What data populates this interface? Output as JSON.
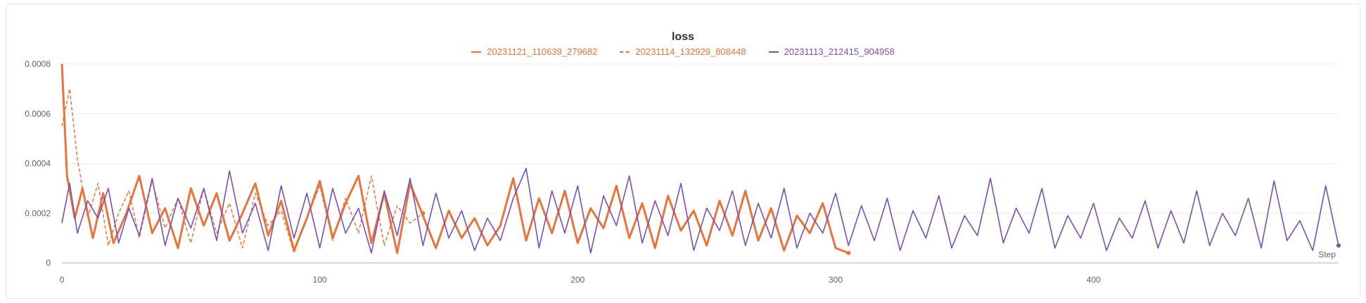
{
  "chart_data": {
    "type": "line",
    "title": "loss",
    "xlabel": "Step",
    "ylabel": "",
    "xlim": [
      0,
      495
    ],
    "ylim": [
      0,
      0.0008
    ],
    "x_ticks": [
      0,
      100,
      200,
      300,
      400
    ],
    "y_ticks": [
      0,
      0.0002,
      0.0004,
      0.0006,
      0.0008
    ],
    "x_tick_labels": [
      "0",
      "100",
      "200",
      "300",
      "400"
    ],
    "y_tick_labels": [
      "0",
      "0.0002",
      "0.0004",
      "0.0006",
      "0.0008"
    ],
    "grid": true,
    "legend_position": "top-center",
    "series": [
      {
        "name": "20231121_110639_279682",
        "color": "#e8743b",
        "style": "solid-thick",
        "x": [
          0,
          2,
          5,
          8,
          12,
          16,
          20,
          25,
          30,
          35,
          40,
          45,
          50,
          55,
          60,
          65,
          70,
          75,
          80,
          85,
          90,
          95,
          100,
          105,
          110,
          115,
          120,
          125,
          130,
          135,
          140,
          145,
          150,
          155,
          160,
          165,
          170,
          175,
          180,
          185,
          190,
          195,
          200,
          205,
          210,
          215,
          220,
          225,
          230,
          235,
          240,
          245,
          250,
          255,
          260,
          265,
          270,
          275,
          280,
          285,
          290,
          295,
          300,
          305
        ],
        "y": [
          0.0008,
          0.00035,
          0.00018,
          0.0003,
          0.0001,
          0.00028,
          8e-05,
          0.0002,
          0.00035,
          0.00012,
          0.00022,
          6e-05,
          0.0003,
          0.00015,
          0.00028,
          9e-05,
          0.0002,
          0.00032,
          0.00011,
          0.00025,
          5e-05,
          0.00018,
          0.00033,
          0.0001,
          0.00024,
          0.00035,
          8e-05,
          0.00028,
          4e-05,
          0.00032,
          0.00019,
          6e-05,
          0.00021,
          0.0001,
          0.00018,
          7e-05,
          0.00015,
          0.00034,
          9e-05,
          0.00026,
          0.00012,
          0.00029,
          8e-05,
          0.00022,
          0.00014,
          0.00031,
          0.0001,
          0.00024,
          6e-05,
          0.00027,
          0.00013,
          0.00021,
          7e-05,
          0.00025,
          0.00011,
          0.00029,
          9e-05,
          0.00022,
          5e-05,
          0.00019,
          0.00012,
          0.00024,
          6e-05,
          4e-05
        ]
      },
      {
        "name": "20231114_132929_808448",
        "color": "#e8743b",
        "style": "dashed",
        "x": [
          0,
          3,
          6,
          10,
          14,
          18,
          22,
          26,
          30,
          35,
          40,
          45,
          50,
          55,
          60,
          65,
          70,
          75,
          80,
          85,
          90,
          95,
          100,
          105,
          110,
          115,
          120,
          125,
          130,
          135,
          140
        ],
        "y": [
          0.00055,
          0.0007,
          0.00042,
          0.00018,
          0.00032,
          7e-05,
          0.0002,
          0.00029,
          0.0001,
          0.00033,
          0.00014,
          0.00026,
          8e-05,
          0.0003,
          0.00012,
          0.00024,
          6e-05,
          0.00028,
          0.00015,
          0.00021,
          4e-05,
          0.00018,
          0.00031,
          9e-05,
          0.00026,
          0.00012,
          0.00035,
          7e-05,
          0.00023,
          0.00016,
          0.0002
        ]
      },
      {
        "name": "20231113_212415_904958",
        "color": "#7b4fb0",
        "style": "solid",
        "x": [
          0,
          3,
          6,
          10,
          14,
          18,
          22,
          26,
          30,
          35,
          40,
          45,
          50,
          55,
          60,
          65,
          70,
          75,
          80,
          85,
          90,
          95,
          100,
          105,
          110,
          115,
          120,
          125,
          130,
          135,
          140,
          145,
          150,
          155,
          160,
          165,
          170,
          175,
          180,
          185,
          190,
          195,
          200,
          205,
          210,
          215,
          220,
          225,
          230,
          235,
          240,
          245,
          250,
          255,
          260,
          265,
          270,
          275,
          280,
          285,
          290,
          295,
          300,
          305,
          310,
          315,
          320,
          325,
          330,
          335,
          340,
          345,
          350,
          355,
          360,
          365,
          370,
          375,
          380,
          385,
          390,
          395,
          400,
          405,
          410,
          415,
          420,
          425,
          430,
          435,
          440,
          445,
          450,
          455,
          460,
          465,
          470,
          475,
          480,
          485,
          490,
          495
        ],
        "y": [
          0.00016,
          0.00032,
          0.00012,
          0.00025,
          0.00018,
          0.0003,
          8e-05,
          0.00022,
          0.00011,
          0.00034,
          7e-05,
          0.00026,
          0.00014,
          0.0003,
          9e-05,
          0.00037,
          0.00012,
          0.00024,
          5e-05,
          0.00031,
          0.0001,
          0.00028,
          6e-05,
          0.0003,
          0.00012,
          0.00022,
          4e-05,
          0.00029,
          0.00011,
          0.00034,
          7e-05,
          0.00028,
          0.0001,
          0.00021,
          5e-05,
          0.00018,
          9e-05,
          0.00026,
          0.00038,
          6e-05,
          0.00029,
          0.00012,
          0.00031,
          4e-05,
          0.00027,
          0.00015,
          0.00035,
          8e-05,
          0.00025,
          0.00011,
          0.00032,
          5e-05,
          0.00022,
          0.00013,
          0.00029,
          7e-05,
          0.00024,
          0.0001,
          0.0003,
          6e-05,
          0.0002,
          0.00012,
          0.00028,
          7e-05,
          0.00023,
          9e-05,
          0.00026,
          5e-05,
          0.00021,
          0.0001,
          0.00027,
          6e-05,
          0.00019,
          0.00011,
          0.00034,
          8e-05,
          0.00022,
          0.00012,
          0.0003,
          6e-05,
          0.00019,
          0.0001,
          0.00024,
          5e-05,
          0.00018,
          0.0001,
          0.00025,
          6e-05,
          0.00021,
          8e-05,
          0.00029,
          7e-05,
          0.0002,
          0.00011,
          0.00026,
          6e-05,
          0.00033,
          9e-05,
          0.00017,
          5e-05,
          0.00031,
          7e-05
        ]
      }
    ]
  }
}
